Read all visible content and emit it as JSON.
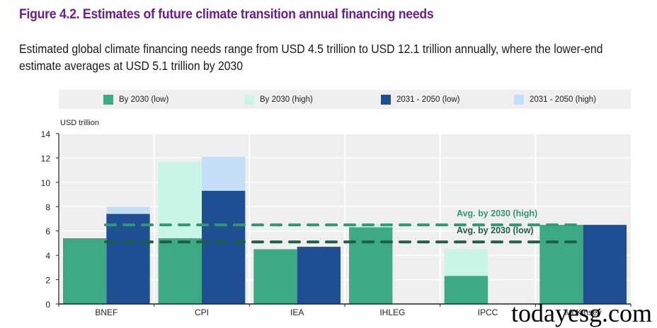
{
  "header": {
    "title": "Figure 4.2. Estimates of future climate transition annual financing needs",
    "subtitle": "Estimated global climate financing needs range from USD 4.5 trillion to USD 12.1 trillion annually, where the lower-end estimate averages at USD 5.1 trillion by 2030"
  },
  "watermark": "todayesg.com",
  "colors": {
    "by2030_low": "#3daa85",
    "by2030_high": "#c9f5e6",
    "y2031_2050_low": "#214f93",
    "y2031_2050_high": "#c6def6",
    "avg_high_line": "#2e9a74",
    "avg_low_line": "#1e5e44",
    "plot_bg": "#efefef"
  },
  "chart_data": {
    "type": "bar",
    "title": "Figure 4.2. Estimates of future climate transition annual financing needs",
    "xlabel": "",
    "ylabel": "USD trillion",
    "ylim": [
      0,
      14
    ],
    "yticks": [
      0,
      2,
      4,
      6,
      8,
      10,
      12,
      14
    ],
    "grid": true,
    "legend_position": "top",
    "categories": [
      "BNEF",
      "CPI",
      "IEA",
      "IHLEG",
      "IPCC",
      "McKinsey"
    ],
    "series": [
      {
        "name": "By 2030 (low)",
        "values": [
          5.4,
          5.4,
          4.5,
          6.3,
          2.3,
          6.5
        ]
      },
      {
        "name": "By 2030 (high)",
        "values": [
          null,
          11.7,
          null,
          6.6,
          4.5,
          null
        ]
      },
      {
        "name": "2031 - 2050 (low)",
        "values": [
          7.4,
          9.3,
          4.7,
          null,
          null,
          6.5
        ]
      },
      {
        "name": "2031 - 2050 (high)",
        "values": [
          8.0,
          12.1,
          null,
          null,
          null,
          null
        ]
      }
    ],
    "reference_lines": [
      {
        "name": "Avg. by 2030 (high)",
        "value": 6.5
      },
      {
        "name": "Avg. by 2030 (low)",
        "value": 5.1
      }
    ]
  }
}
